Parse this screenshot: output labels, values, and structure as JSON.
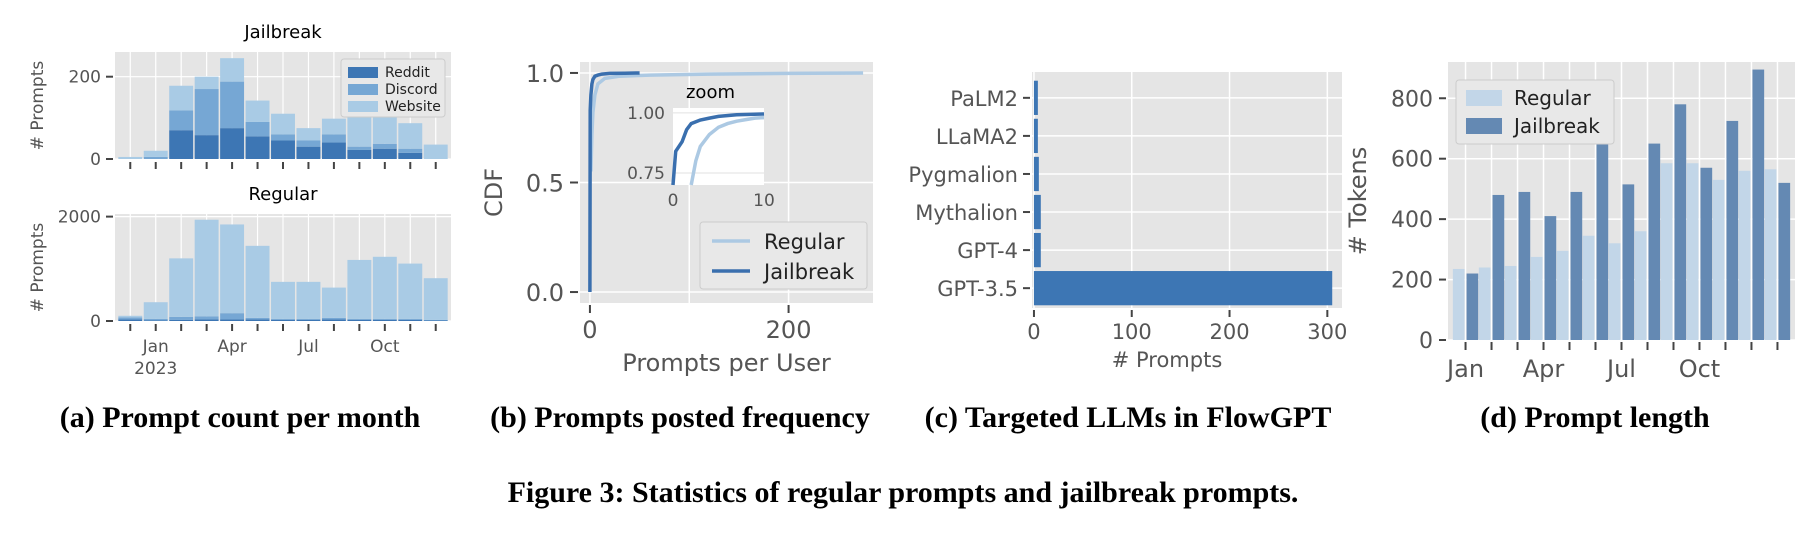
{
  "figure_caption": "Figure 3: Statistics of regular prompts and jailbreak prompts.",
  "subcaptions": {
    "a": "(a) Prompt count per month",
    "b": "(b) Prompts posted frequency",
    "c": "(c) Targeted LLMs in FlowGPT",
    "d": "(d) Prompt length"
  },
  "colors": {
    "panel_bg": "#e5e5e5",
    "grid": "#ffffff",
    "reddit": "#3d76b4",
    "discord": "#76a7d4",
    "website": "#a9cbe5",
    "regular_light": "#c2d6e8",
    "jailbreak_dark": "#6489b3",
    "line_dark": "#3a6fae",
    "line_light": "#acc9e3",
    "llm_bar": "#3d76b4"
  },
  "chart_data": [
    {
      "id": "a_jailbreak",
      "type": "bar",
      "stacked": true,
      "title": "Jailbreak",
      "ylabel": "# Prompts",
      "ylim": [
        0,
        260
      ],
      "yticks": [
        0,
        200
      ],
      "months": 13,
      "series": [
        {
          "name": "Reddit",
          "values": [
            0,
            0,
            70,
            58,
            75,
            55,
            45,
            30,
            40,
            22,
            25,
            15,
            0
          ]
        },
        {
          "name": "Discord",
          "values": [
            0,
            5,
            48,
            112,
            113,
            35,
            15,
            15,
            20,
            8,
            12,
            10,
            0
          ]
        },
        {
          "name": "Website",
          "values": [
            5,
            15,
            60,
            30,
            57,
            52,
            50,
            30,
            38,
            78,
            70,
            62,
            35
          ]
        }
      ]
    },
    {
      "id": "a_regular",
      "type": "bar",
      "stacked": true,
      "title": "Regular",
      "ylabel": "# Prompts",
      "ylim": [
        0,
        2050
      ],
      "yticks": [
        0,
        2000
      ],
      "xticks": [
        "Jan\n2023",
        "Apr",
        "Jul",
        "Oct"
      ],
      "months": 13,
      "series": [
        {
          "name": "Reddit",
          "values": [
            30,
            10,
            20,
            30,
            30,
            30,
            20,
            20,
            30,
            20,
            20,
            20,
            10
          ]
        },
        {
          "name": "Discord",
          "values": [
            40,
            30,
            60,
            60,
            120,
            30,
            20,
            20,
            30,
            20,
            20,
            20,
            10
          ]
        },
        {
          "name": "Website",
          "values": [
            30,
            320,
            1120,
            1850,
            1700,
            1380,
            710,
            710,
            580,
            1130,
            1190,
            1060,
            800
          ]
        }
      ]
    },
    {
      "id": "b_cdf",
      "type": "line",
      "xlabel": "Prompts per User",
      "ylabel": "CDF",
      "xlim": [
        -10,
        285
      ],
      "ylim": [
        -0.05,
        1.05
      ],
      "xticks": [
        0,
        200
      ],
      "yticks": [
        "0.0",
        "0.5",
        "1.0"
      ],
      "series": [
        {
          "name": "Regular",
          "x": [
            1,
            2,
            3,
            5,
            8,
            15,
            30,
            60,
            120,
            200,
            275
          ],
          "y": [
            0.55,
            0.72,
            0.82,
            0.9,
            0.95,
            0.975,
            0.985,
            0.99,
            0.995,
            0.998,
            1.0
          ]
        },
        {
          "name": "Jailbreak",
          "x": [
            0,
            0.3,
            1,
            2,
            3,
            5,
            8,
            12,
            20,
            35,
            50
          ],
          "y": [
            0.0,
            0.83,
            0.9,
            0.95,
            0.97,
            0.985,
            0.99,
            0.995,
            0.998,
            0.999,
            1.0
          ]
        }
      ],
      "inset": {
        "title": "zoom",
        "xlim": [
          0,
          10
        ],
        "ylim": [
          0.7,
          1.02
        ],
        "xticks": [
          0,
          10
        ],
        "yticks": [
          "0.75",
          "1.00"
        ],
        "series": [
          {
            "name": "Regular",
            "x": [
              2,
              2.5,
              3,
              4,
              5,
              6,
              7,
              8,
              9,
              10
            ],
            "y": [
              0.7,
              0.8,
              0.86,
              0.91,
              0.94,
              0.955,
              0.965,
              0.972,
              0.978,
              0.98
            ]
          },
          {
            "name": "Jailbreak",
            "x": [
              0,
              0.3,
              1,
              1.5,
              2,
              3,
              4,
              5,
              7,
              10
            ],
            "y": [
              0.7,
              0.84,
              0.88,
              0.93,
              0.955,
              0.97,
              0.978,
              0.985,
              0.992,
              0.995
            ]
          }
        ]
      }
    },
    {
      "id": "c_llms",
      "type": "bar",
      "orientation": "horizontal",
      "xlabel": "# Prompts",
      "xlim": [
        -2,
        315
      ],
      "xticks": [
        0,
        100,
        200,
        300
      ],
      "categories": [
        "PaLM2",
        "LLaMA2",
        "Pygmalion",
        "Mythalion",
        "GPT-4",
        "GPT-3.5"
      ],
      "values": [
        4,
        4,
        5,
        7,
        7,
        305
      ]
    },
    {
      "id": "d_length",
      "type": "bar",
      "ylabel": "# Tokens",
      "ylim": [
        0,
        920
      ],
      "yticks": [
        0,
        200,
        400,
        600,
        800
      ],
      "xticks": [
        "Jan",
        "Apr",
        "Jul",
        "Oct"
      ],
      "months": 13,
      "series": [
        {
          "name": "Regular",
          "values": [
            235,
            240,
            245,
            275,
            295,
            345,
            320,
            360,
            585,
            585,
            530,
            560,
            565
          ]
        },
        {
          "name": "Jailbreak",
          "values": [
            220,
            480,
            490,
            410,
            490,
            765,
            515,
            650,
            780,
            570,
            725,
            895,
            520
          ]
        }
      ]
    }
  ]
}
